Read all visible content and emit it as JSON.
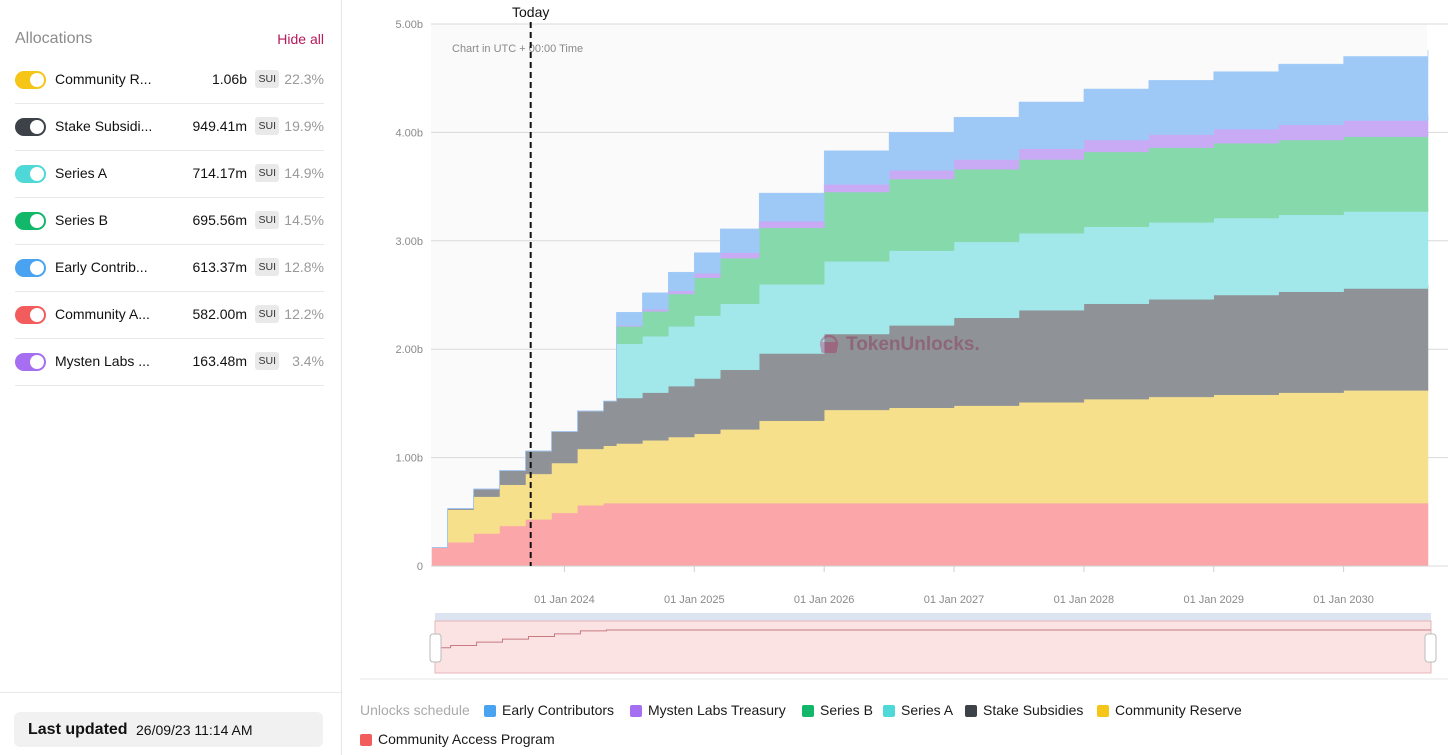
{
  "sidebar": {
    "title": "Allocations",
    "hide_all_label": "Hide all",
    "allocations": [
      {
        "name": "Community R...",
        "amount": "1.06b",
        "unit": "SUI",
        "percent": "22.3%",
        "color": "#f5c518"
      },
      {
        "name": "Stake Subsidi...",
        "amount": "949.41m",
        "unit": "SUI",
        "percent": "19.9%",
        "color": "#3d4148"
      },
      {
        "name": "Series A",
        "amount": "714.17m",
        "unit": "SUI",
        "percent": "14.9%",
        "color": "#4fd8d8"
      },
      {
        "name": "Series B",
        "amount": "695.56m",
        "unit": "SUI",
        "percent": "14.5%",
        "color": "#12b76a"
      },
      {
        "name": "Early Contrib...",
        "amount": "613.37m",
        "unit": "SUI",
        "percent": "12.8%",
        "color": "#4aa3f0"
      },
      {
        "name": "Community A...",
        "amount": "582.00m",
        "unit": "SUI",
        "percent": "12.2%",
        "color": "#f25c5c"
      },
      {
        "name": "Mysten Labs ...",
        "amount": "163.48m",
        "unit": "SUI",
        "percent": "3.4%",
        "color": "#a66ef0"
      }
    ],
    "last_updated_label": "Last updated",
    "last_updated_value": "26/09/23 11:14 AM"
  },
  "chart_data": {
    "type": "area",
    "stacked": true,
    "step": true,
    "note": "Chart in UTC + 00:00 Time",
    "watermark": "TokenUnlocks.",
    "today_label": "Today",
    "today_x": 2023.74,
    "x_ticks": [
      "01 Jan 2024",
      "01 Jan 2025",
      "01 Jan 2026",
      "01 Jan 2027",
      "01 Jan 2028",
      "01 Jan 2029",
      "01 Jan 2030"
    ],
    "y_ticks": [
      "0",
      "1.00b",
      "2.00b",
      "3.00b",
      "4.00b",
      "5.00b"
    ],
    "xlim": [
      2022.98,
      2030.65
    ],
    "ylim": [
      0,
      5.0
    ],
    "y_unit": "b",
    "x": [
      2022.98,
      2023.1,
      2023.3,
      2023.5,
      2023.7,
      2023.9,
      2024.1,
      2024.3,
      2024.4,
      2024.6,
      2024.8,
      2025.0,
      2025.2,
      2025.5,
      2026.0,
      2026.5,
      2027.0,
      2027.5,
      2028.0,
      2028.5,
      2029.0,
      2029.5,
      2030.0,
      2030.65
    ],
    "series": [
      {
        "name": "Community Access Program",
        "color": "#fba6a8",
        "values": [
          0.17,
          0.22,
          0.3,
          0.37,
          0.43,
          0.49,
          0.56,
          0.58,
          0.58,
          0.58,
          0.58,
          0.58,
          0.58,
          0.58,
          0.58,
          0.58,
          0.58,
          0.58,
          0.58,
          0.58,
          0.58,
          0.58,
          0.58,
          0.58
        ]
      },
      {
        "name": "Community Reserve",
        "color": "#f7e08c",
        "values": [
          0.0,
          0.3,
          0.34,
          0.38,
          0.42,
          0.46,
          0.52,
          0.53,
          0.55,
          0.58,
          0.61,
          0.64,
          0.68,
          0.76,
          0.86,
          0.88,
          0.9,
          0.93,
          0.96,
          0.98,
          1.0,
          1.02,
          1.04,
          1.06
        ]
      },
      {
        "name": "Stake Subsidies",
        "color": "#8f9297",
        "values": [
          0.0,
          0.01,
          0.07,
          0.13,
          0.21,
          0.29,
          0.35,
          0.41,
          0.42,
          0.44,
          0.47,
          0.51,
          0.55,
          0.62,
          0.7,
          0.76,
          0.81,
          0.85,
          0.88,
          0.9,
          0.92,
          0.93,
          0.94,
          0.95
        ]
      },
      {
        "name": "Series A",
        "color": "#a2e8ea",
        "values": [
          0.0,
          0.0,
          0.0,
          0.0,
          0.0,
          0.0,
          0.0,
          0.0,
          0.5,
          0.52,
          0.55,
          0.58,
          0.61,
          0.64,
          0.67,
          0.69,
          0.7,
          0.71,
          0.71,
          0.71,
          0.71,
          0.71,
          0.71,
          0.71
        ]
      },
      {
        "name": "Series B",
        "color": "#86d9ab",
        "values": [
          0.0,
          0.0,
          0.0,
          0.0,
          0.0,
          0.0,
          0.0,
          0.0,
          0.16,
          0.23,
          0.3,
          0.35,
          0.42,
          0.52,
          0.64,
          0.66,
          0.67,
          0.68,
          0.69,
          0.69,
          0.69,
          0.69,
          0.69,
          0.69
        ]
      },
      {
        "name": "Mysten Labs Treasury",
        "color": "#c9aaf5",
        "values": [
          0.0,
          0.0,
          0.0,
          0.0,
          0.0,
          0.0,
          0.0,
          0.0,
          0.01,
          0.02,
          0.03,
          0.04,
          0.05,
          0.06,
          0.07,
          0.08,
          0.09,
          0.1,
          0.11,
          0.12,
          0.13,
          0.14,
          0.15,
          0.16
        ]
      },
      {
        "name": "Early Contributors",
        "color": "#9ec9f7",
        "values": [
          0.0,
          0.0,
          0.0,
          0.0,
          0.0,
          0.0,
          0.0,
          0.0,
          0.12,
          0.15,
          0.17,
          0.19,
          0.22,
          0.26,
          0.31,
          0.35,
          0.39,
          0.43,
          0.47,
          0.5,
          0.53,
          0.56,
          0.59,
          0.61
        ]
      }
    ]
  },
  "legend": {
    "title": "Unlocks schedule",
    "items": [
      {
        "label": "Early Contributors",
        "color": "#4aa3f0"
      },
      {
        "label": "Mysten Labs Treasury",
        "color": "#a66ef0"
      },
      {
        "label": "Series B",
        "color": "#12b76a"
      },
      {
        "label": "Series A",
        "color": "#4fd8d8"
      },
      {
        "label": "Stake Subsidies",
        "color": "#3d4148"
      },
      {
        "label": "Community Reserve",
        "color": "#f5c518"
      },
      {
        "label": "Community Access Program",
        "color": "#f25c5c"
      }
    ]
  }
}
